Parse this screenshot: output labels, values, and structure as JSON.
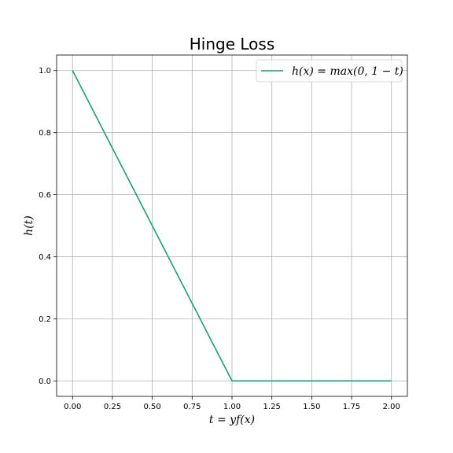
{
  "chart_data": {
    "type": "line",
    "title": "Hinge Loss",
    "xlabel": "t = yf(x)",
    "ylabel": "h(t)",
    "xlim": [
      -0.1,
      2.1
    ],
    "ylim": [
      -0.05,
      1.05
    ],
    "grid": true,
    "legend_position": "top-right",
    "x_ticks": [
      0.0,
      0.25,
      0.5,
      0.75,
      1.0,
      1.25,
      1.5,
      1.75,
      2.0
    ],
    "x_tick_labels": [
      "0.00",
      "0.25",
      "0.50",
      "0.75",
      "1.00",
      "1.25",
      "1.50",
      "1.75",
      "2.00"
    ],
    "y_ticks": [
      0.0,
      0.2,
      0.4,
      0.6,
      0.8,
      1.0
    ],
    "y_tick_labels": [
      "0.0",
      "0.2",
      "0.4",
      "0.6",
      "0.8",
      "1.0"
    ],
    "series": [
      {
        "name": "h(x) = max(0, 1 − t)",
        "color": "#1a9e77",
        "x": [
          0.0,
          0.5,
          1.0,
          1.5,
          2.0
        ],
        "y": [
          1.0,
          0.5,
          0.0,
          0.0,
          0.0
        ]
      }
    ]
  }
}
